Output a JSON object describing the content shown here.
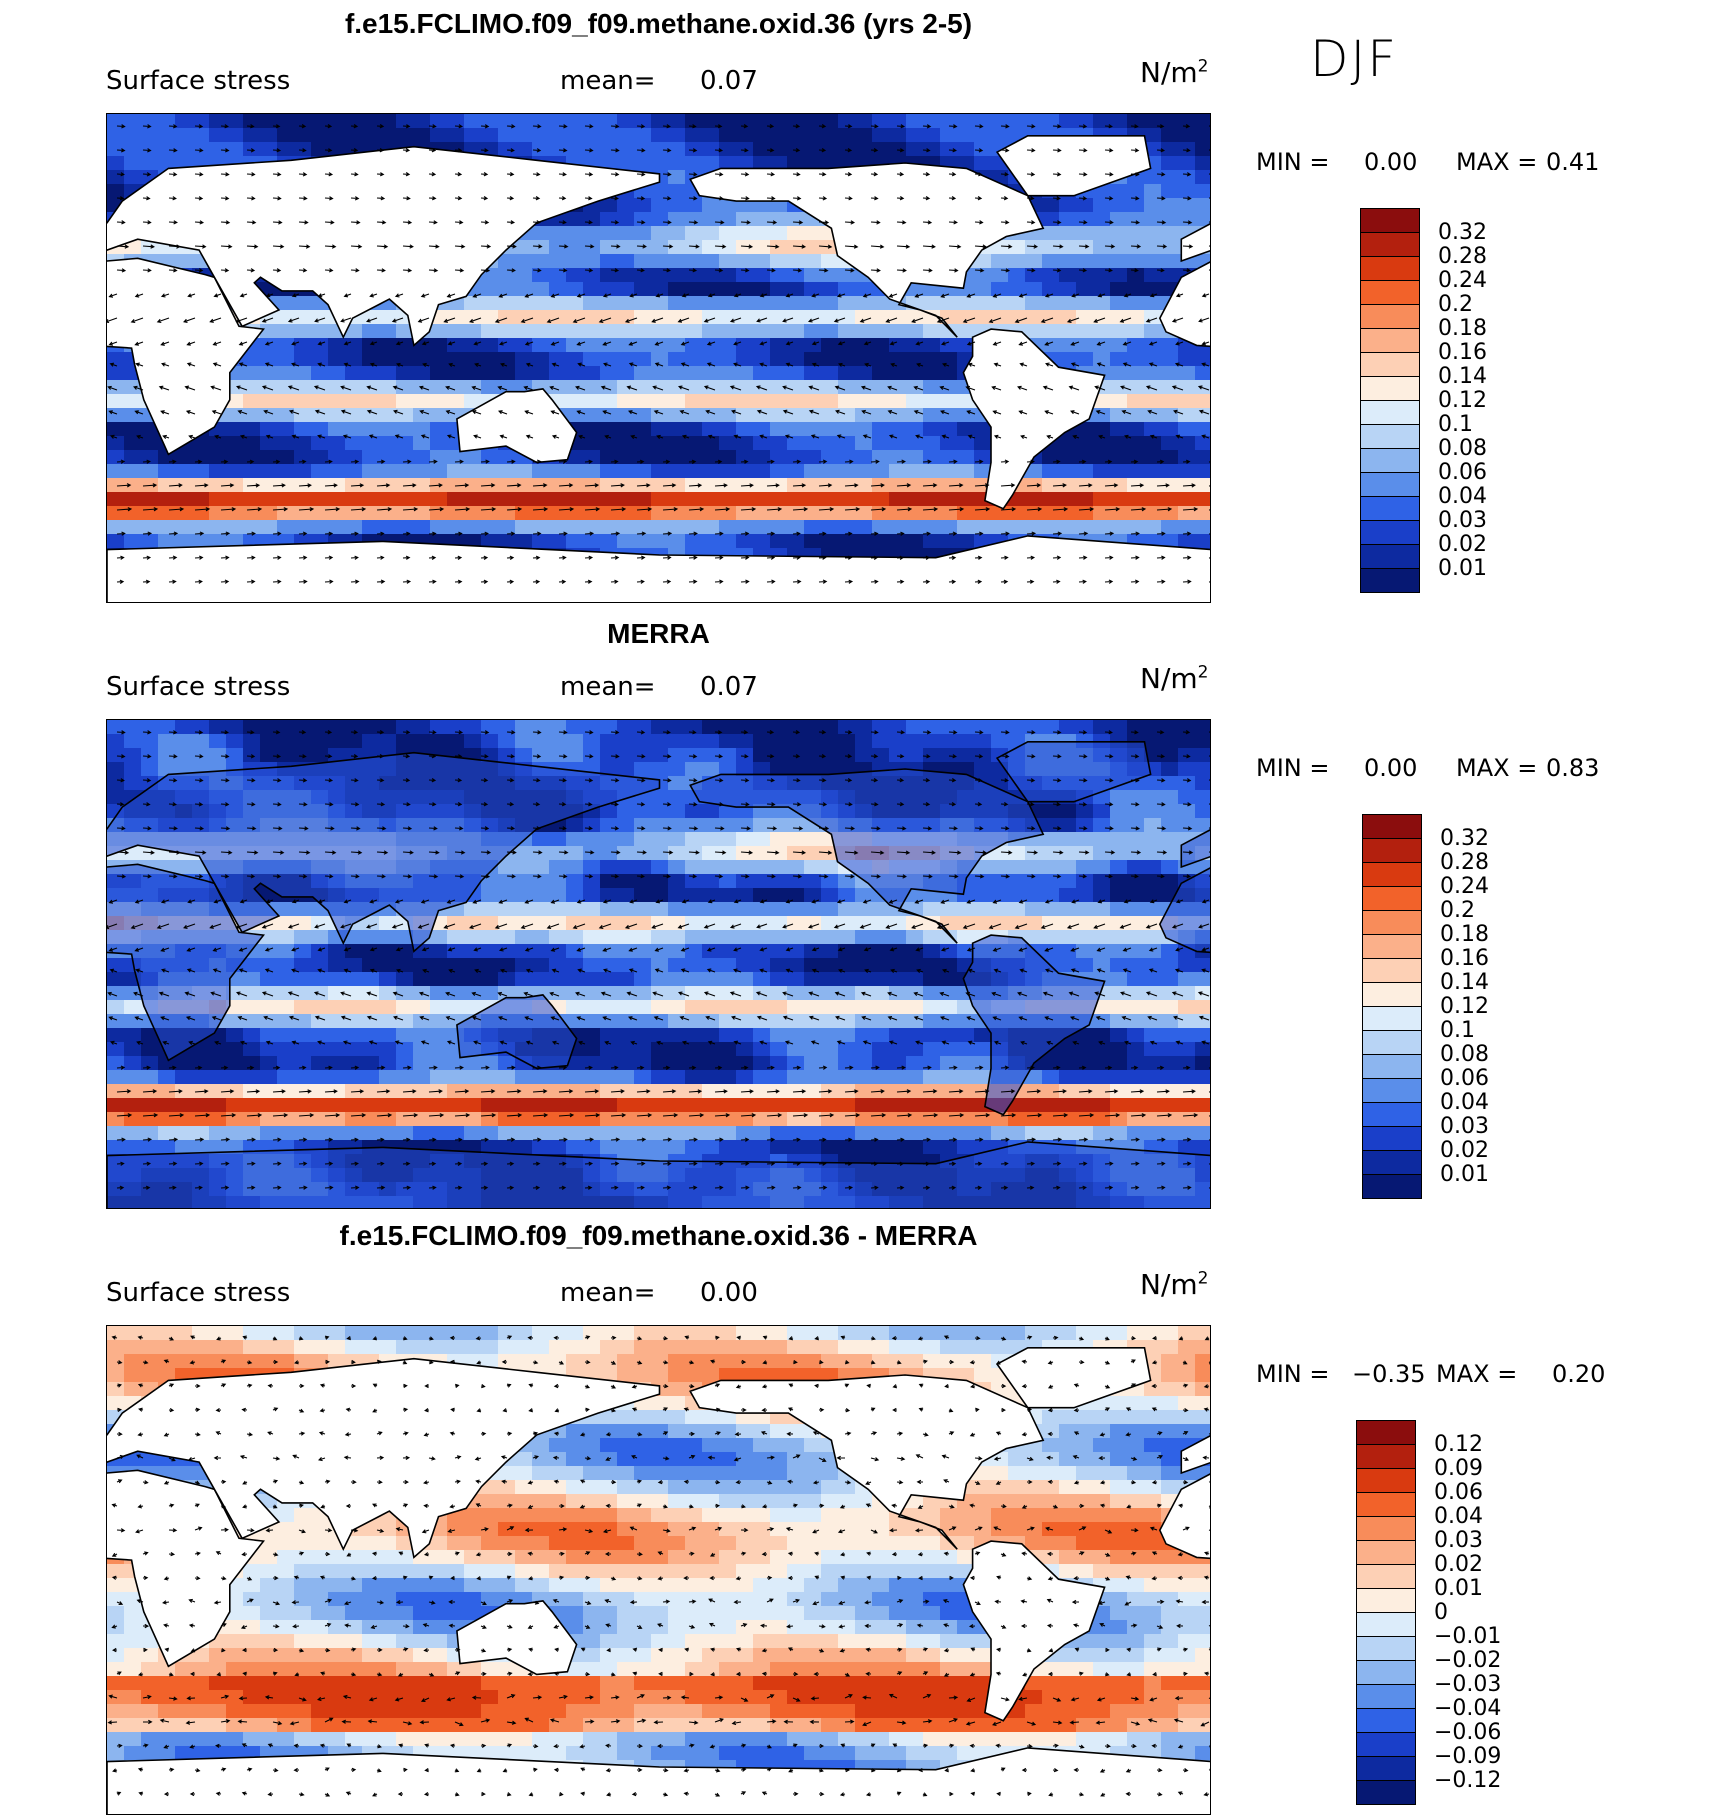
{
  "season": "DJF",
  "panels": [
    {
      "title": "f.e15.FCLIMO.f09_f09.methane.oxid.36 (yrs 2-5)",
      "variable": "Surface stress",
      "mean_label": "mean=",
      "mean_value": "0.07",
      "units": "N/m",
      "units_exp": "2",
      "min_label": "MIN =",
      "min_value": "0.00",
      "max_label": "MAX =",
      "max_value": "0.41",
      "colorbar": {
        "labels": [
          "0.32",
          "0.28",
          "0.24",
          "0.2",
          "0.18",
          "0.16",
          "0.14",
          "0.12",
          "0.1",
          "0.08",
          "0.06",
          "0.04",
          "0.03",
          "0.02",
          "0.01"
        ],
        "colors": [
          "#8b0d0d",
          "#b3200e",
          "#d93a10",
          "#f2622a",
          "#f88c5a",
          "#fbb08a",
          "#fdd0b5",
          "#fdeee0",
          "#dcecfa",
          "#b8d4f5",
          "#8cb5ef",
          "#5a8eea",
          "#2f62e6",
          "#1a3fc9",
          "#0d2aa0",
          "#061873"
        ]
      },
      "chart_data": {
        "type": "heatmap",
        "title": "f.e15.FCLIMO.f09_f09.methane.oxid.36 (yrs 2-5)",
        "variable": "Surface stress",
        "units": "N/m2",
        "mean": 0.07,
        "min": 0.0,
        "max": 0.41,
        "levels": [
          0.01,
          0.02,
          0.03,
          0.04,
          0.06,
          0.08,
          0.1,
          0.12,
          0.14,
          0.16,
          0.18,
          0.2,
          0.24,
          0.28,
          0.32
        ],
        "overlay": "wind stress vectors"
      }
    },
    {
      "title": "MERRA",
      "variable": "Surface stress",
      "mean_label": "mean=",
      "mean_value": "0.07",
      "units": "N/m",
      "units_exp": "2",
      "min_label": "MIN =",
      "min_value": "0.00",
      "max_label": "MAX =",
      "max_value": "0.83",
      "colorbar": {
        "labels": [
          "0.32",
          "0.28",
          "0.24",
          "0.2",
          "0.18",
          "0.16",
          "0.14",
          "0.12",
          "0.1",
          "0.08",
          "0.06",
          "0.04",
          "0.03",
          "0.02",
          "0.01"
        ],
        "colors": [
          "#8b0d0d",
          "#b3200e",
          "#d93a10",
          "#f2622a",
          "#f88c5a",
          "#fbb08a",
          "#fdd0b5",
          "#fdeee0",
          "#dcecfa",
          "#b8d4f5",
          "#8cb5ef",
          "#5a8eea",
          "#2f62e6",
          "#1a3fc9",
          "#0d2aa0",
          "#061873"
        ]
      },
      "chart_data": {
        "type": "heatmap",
        "title": "MERRA",
        "variable": "Surface stress",
        "units": "N/m2",
        "mean": 0.07,
        "min": 0.0,
        "max": 0.83,
        "levels": [
          0.01,
          0.02,
          0.03,
          0.04,
          0.06,
          0.08,
          0.1,
          0.12,
          0.14,
          0.16,
          0.18,
          0.2,
          0.24,
          0.28,
          0.32
        ],
        "overlay": "wind stress vectors"
      }
    },
    {
      "title": "f.e15.FCLIMO.f09_f09.methane.oxid.36 - MERRA",
      "variable": "Surface stress",
      "mean_label": "mean=",
      "mean_value": "0.00",
      "units": "N/m",
      "units_exp": "2",
      "min_label": "MIN =",
      "min_value": "−0.35",
      "max_label": "MAX =",
      "max_value": "0.20",
      "colorbar": {
        "labels": [
          "0.12",
          "0.09",
          "0.06",
          "0.04",
          "0.03",
          "0.02",
          "0.01",
          "0",
          "−0.01",
          "−0.02",
          "−0.03",
          "−0.04",
          "−0.06",
          "−0.09",
          "−0.12"
        ],
        "colors": [
          "#8b0d0d",
          "#b3200e",
          "#d93a10",
          "#f2622a",
          "#f88c5a",
          "#fbb08a",
          "#fdd0b5",
          "#fdeee0",
          "#dcecfa",
          "#b8d4f5",
          "#8cb5ef",
          "#5a8eea",
          "#2f62e6",
          "#1a3fc9",
          "#0d2aa0",
          "#061873"
        ]
      },
      "chart_data": {
        "type": "heatmap",
        "title": "f.e15.FCLIMO.f09_f09.methane.oxid.36 - MERRA",
        "variable": "Surface stress",
        "units": "N/m2",
        "mean": 0.0,
        "min": -0.35,
        "max": 0.2,
        "levels": [
          -0.12,
          -0.09,
          -0.06,
          -0.04,
          -0.03,
          -0.02,
          -0.01,
          0,
          0.01,
          0.02,
          0.03,
          0.04,
          0.06,
          0.09,
          0.12
        ],
        "overlay": "wind stress difference vectors"
      }
    }
  ]
}
